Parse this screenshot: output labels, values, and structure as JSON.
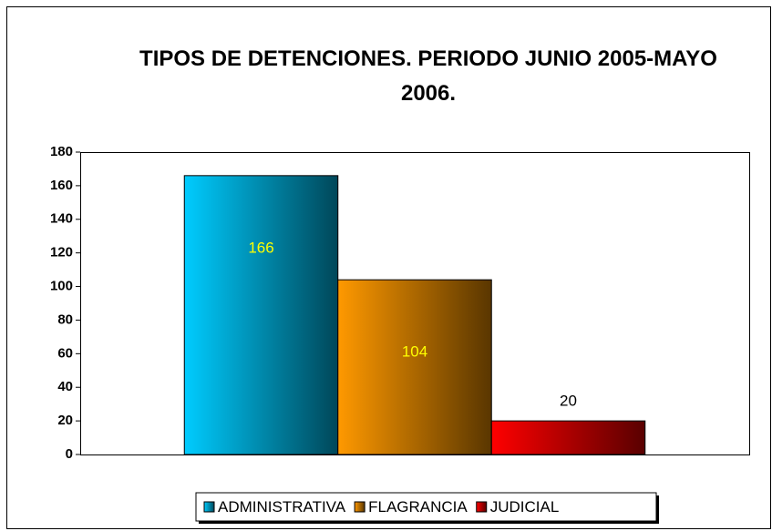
{
  "chart_data": {
    "type": "bar",
    "title": "TIPOS DE DETENCIONES. PERIODO JUNIO 2005-MAYO 2006.",
    "categories": [
      null
    ],
    "series": [
      {
        "name": "ADMINISTRATIVA",
        "color": "#00ccff",
        "values": [
          166
        ]
      },
      {
        "name": "FLAGRANCIA",
        "color": "#ff9900",
        "values": [
          104
        ]
      },
      {
        "name": "JUDICIAL",
        "color": "#ff0000",
        "values": [
          20
        ]
      }
    ],
    "ylim": [
      0,
      180
    ],
    "yticks": [
      0,
      20,
      40,
      60,
      80,
      100,
      120,
      140,
      160,
      180
    ],
    "grid": false,
    "legend": "bottom"
  }
}
